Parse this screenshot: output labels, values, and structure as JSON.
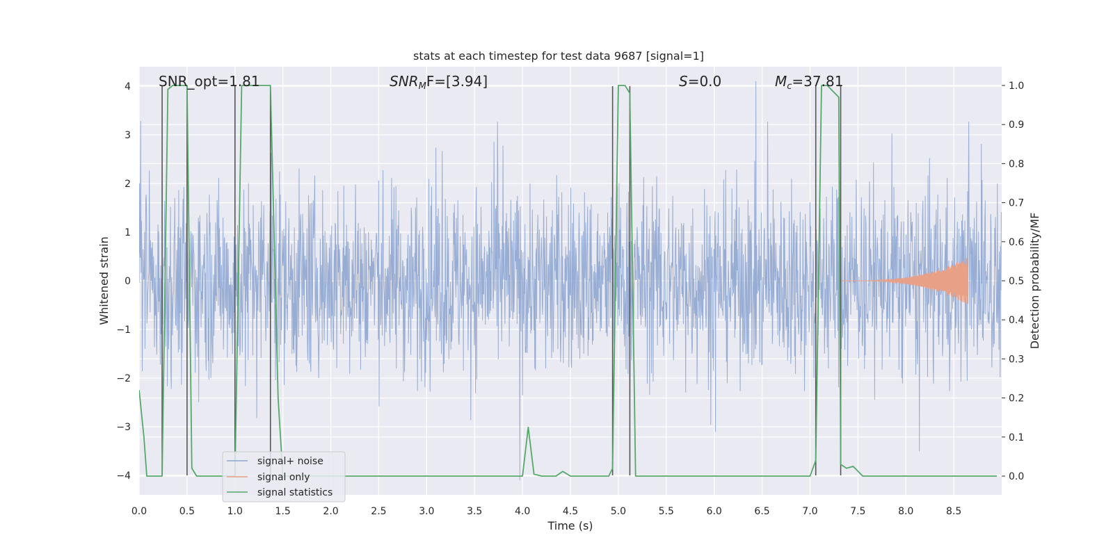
{
  "chart_data": {
    "type": "line",
    "title": "stats at each timestep for test data 9687 [signal=1]",
    "xlabel": "Time (s)",
    "ylabel": "Whitened strain",
    "y2label": "Detection probability/MF",
    "xlim": [
      0,
      9.0
    ],
    "ylim": [
      -4.4,
      4.4
    ],
    "y2lim": [
      -0.048,
      1.048
    ],
    "xticks": [
      "0.0",
      "0.5",
      "1.0",
      "1.5",
      "2.0",
      "2.5",
      "3.0",
      "3.5",
      "4.0",
      "4.5",
      "5.0",
      "5.5",
      "6.0",
      "6.5",
      "7.0",
      "7.5",
      "8.0",
      "8.5"
    ],
    "yticks": [
      "4",
      "3",
      "2",
      "1",
      "0",
      "−1",
      "−2",
      "−3",
      "−4"
    ],
    "y2ticks": [
      "1.0",
      "0.9",
      "0.8",
      "0.7",
      "0.6",
      "0.5",
      "0.4",
      "0.3",
      "0.2",
      "0.1",
      "0.0"
    ],
    "grid": true,
    "legend_position": "lower-left",
    "annotations": {
      "snr_opt": "SNR_opt=1.81",
      "snr_mf_base": "SNR",
      "snr_mf_sub": "M",
      "snr_mf_rest": "F=[3.94]",
      "s_base": "S",
      "s_rest": "=0.0",
      "mc_base": "M",
      "mc_sub": "c",
      "mc_rest": "=37.81"
    },
    "series": [
      {
        "name": "signal+ noise",
        "color": "#8fa6d0",
        "note": "whitened strain noise, roughly uniform amplitude about ±2 with spikes to ±4"
      },
      {
        "name": "signal only",
        "color": "#e8a087",
        "chirp": {
          "start": 7.3,
          "end": 8.65,
          "peak_amplitude": 0.5
        }
      },
      {
        "name": "signal statistics",
        "color": "#55a868",
        "axis": "right",
        "x": [
          0.0,
          0.05,
          0.08,
          0.24,
          0.3,
          0.35,
          0.45,
          0.5,
          0.55,
          0.6,
          0.99,
          1.0,
          1.07,
          1.1,
          1.3,
          1.37,
          1.45,
          1.5,
          4.0,
          4.06,
          4.12,
          4.2,
          4.35,
          4.42,
          4.5,
          4.9,
          4.94,
          5.0,
          5.07,
          5.12,
          5.18,
          7.0,
          7.06,
          7.12,
          7.18,
          7.3,
          7.32,
          7.38,
          7.45,
          7.55,
          8.95
        ],
        "y": [
          0.22,
          0.1,
          0.0,
          0.0,
          0.99,
          1.0,
          1.0,
          1.0,
          0.02,
          0.0,
          0.0,
          0.0,
          1.0,
          1.0,
          1.0,
          1.0,
          0.2,
          0.0,
          0.0,
          0.125,
          0.005,
          0.0,
          0.0,
          0.012,
          0.0,
          0.0,
          0.02,
          1.0,
          1.0,
          0.98,
          0.0,
          0.0,
          0.04,
          1.0,
          1.0,
          0.97,
          0.03,
          0.02,
          0.025,
          0.0,
          0.0
        ]
      }
    ],
    "vertical_markers_x": [
      0.24,
      0.5,
      1.0,
      1.37,
      4.94,
      5.12,
      7.06,
      7.32
    ]
  }
}
